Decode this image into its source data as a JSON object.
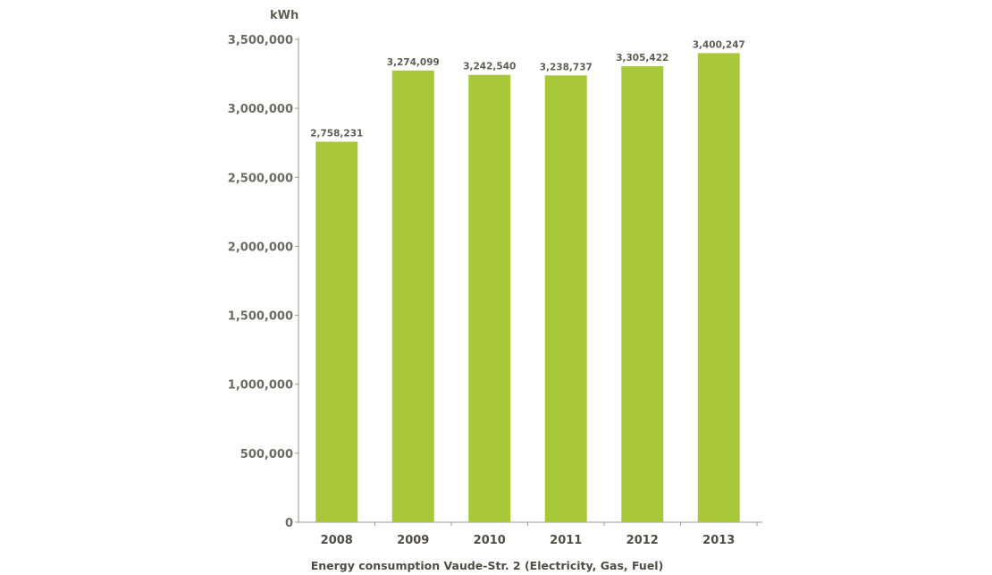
{
  "chart_data": {
    "type": "bar",
    "title": "",
    "caption": "Energy consumption Vaude-Str. 2 (Electricity, Gas, Fuel)",
    "unit_label": "kWh",
    "xlabel": "",
    "ylabel": "kWh",
    "categories": [
      "2008",
      "2009",
      "2010",
      "2011",
      "2012",
      "2013"
    ],
    "values": [
      2758231,
      3274099,
      3242540,
      3238737,
      3305422,
      3400247
    ],
    "value_labels": [
      "2,758,231",
      "3,274,099",
      "3,242,540",
      "3,238,737",
      "3,305,422",
      "3,400,247"
    ],
    "ylim": [
      0,
      3500000
    ],
    "yticks": [
      0,
      500000,
      1000000,
      1500000,
      2000000,
      2500000,
      3000000,
      3500000
    ],
    "ytick_labels": [
      "0",
      "500,000",
      "1,000,000",
      "1,500,000",
      "2,000,000",
      "2,500,000",
      "3,000,000",
      "3,500,000"
    ],
    "grid": false,
    "legend": "none",
    "bar_color": "#a8c83a",
    "axis_color": "#9a9a92"
  }
}
